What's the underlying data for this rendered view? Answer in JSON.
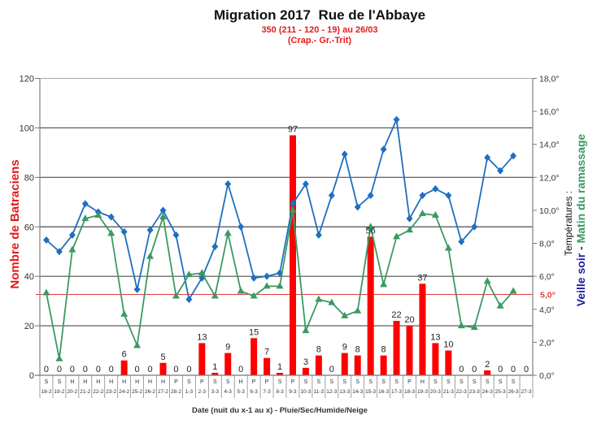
{
  "chart_data": {
    "type": "bar+line",
    "title": "Migration 2017  Rue de l'Abbaye",
    "subtitle": [
      "350 (211 - 120 - 19) au 26/03",
      "(Crap.- Gr.-Trit)"
    ],
    "xlabel": "Date (nuit du x-1 au x) - Pluie/Sec/Humide/Neige",
    "ylabel": "Nombre de Batraciens",
    "y2label": {
      "prefix": "Températures :",
      "series1": "Veille soir",
      "sep": " - ",
      "series2": "Matin du ramassage"
    },
    "ylim": [
      0,
      120
    ],
    "yticks": [
      0,
      20,
      40,
      60,
      80,
      100,
      120
    ],
    "y2lim": [
      0,
      18
    ],
    "y2ticks": [
      {
        "value": 0,
        "label": "0,0°"
      },
      {
        "value": 2,
        "label": "2,0°"
      },
      {
        "value": 4,
        "label": "4,0°"
      },
      {
        "value": 6,
        "label": "6,0°"
      },
      {
        "value": 8,
        "label": "8,0°"
      },
      {
        "value": 10,
        "label": "10,0°"
      },
      {
        "value": 12,
        "label": "12,0°"
      },
      {
        "value": 14,
        "label": "14,0°"
      },
      {
        "value": 16,
        "label": "16,0°"
      },
      {
        "value": 18,
        "label": "18,0°"
      }
    ],
    "grid": true,
    "categories": [
      "18-2",
      "19-2",
      "20-2",
      "21-2",
      "22-2",
      "23-2",
      "24-2",
      "25-2",
      "26-2",
      "27-2",
      "28-2",
      "1-3",
      "2-3",
      "3-3",
      "4-3",
      "5-3",
      "6-3",
      "7-3",
      "8-3",
      "9-3",
      "10-3",
      "11-3",
      "12-3",
      "13-3",
      "14-3",
      "15-3",
      "16-3",
      "17-3",
      "18-3",
      "19-3",
      "20-3",
      "21-3",
      "22-3",
      "23-3",
      "24-3",
      "25-3",
      "26-3",
      "27-3"
    ],
    "weather": [
      "S",
      "S",
      "H",
      "H",
      "H",
      "H",
      "H",
      "H",
      "H",
      "H",
      "P",
      "S",
      "P",
      "S",
      "S",
      "H",
      "P",
      "P",
      "S",
      "P",
      "S",
      "S",
      "S",
      "S",
      "S",
      "S",
      "S",
      "S",
      "P",
      "H",
      "S",
      "S",
      "S",
      "S",
      "S",
      "S",
      "S",
      ""
    ],
    "series": [
      {
        "name": "Nombre de Batraciens",
        "type": "bar",
        "axis": "left",
        "color": "#FF0000",
        "values": [
          0,
          0,
          0,
          0,
          0,
          0,
          6,
          0,
          0,
          5,
          0,
          0,
          13,
          1,
          9,
          0,
          15,
          7,
          1,
          97,
          3,
          8,
          0,
          9,
          8,
          56,
          8,
          22,
          20,
          37,
          13,
          10,
          0,
          0,
          2,
          0,
          0,
          0
        ]
      },
      {
        "name": "Veille soir",
        "type": "line",
        "axis": "right",
        "color": "#1F6FC0",
        "marker": "diamond",
        "values": [
          8.2,
          7.5,
          8.5,
          10.4,
          9.9,
          9.6,
          8.7,
          5.2,
          8.8,
          10.0,
          8.5,
          4.6,
          5.9,
          7.8,
          11.6,
          9.0,
          5.9,
          6.0,
          6.2,
          10.4,
          11.6,
          8.5,
          10.9,
          13.4,
          10.2,
          10.9,
          13.7,
          15.5,
          9.5,
          10.9,
          11.3,
          10.9,
          8.1,
          9.0,
          13.2,
          12.4,
          13.3,
          null
        ]
      },
      {
        "name": "Matin du ramassage",
        "type": "line",
        "axis": "right",
        "color": "#3A9A62",
        "marker": "triangle",
        "values": [
          5.0,
          1.0,
          7.6,
          9.5,
          9.7,
          8.6,
          3.7,
          1.8,
          7.2,
          9.6,
          4.8,
          6.1,
          6.2,
          4.8,
          8.6,
          5.1,
          4.8,
          5.4,
          5.4,
          10.0,
          2.7,
          4.6,
          4.4,
          3.6,
          3.9,
          9.0,
          5.5,
          8.4,
          8.8,
          9.8,
          9.7,
          7.7,
          3.0,
          2.9,
          5.7,
          4.2,
          5.1,
          null
        ]
      }
    ],
    "reference_line": {
      "value": 5.0,
      "axis": "right",
      "label": "5,0°",
      "color": "#E03C3C"
    },
    "total": 350
  }
}
